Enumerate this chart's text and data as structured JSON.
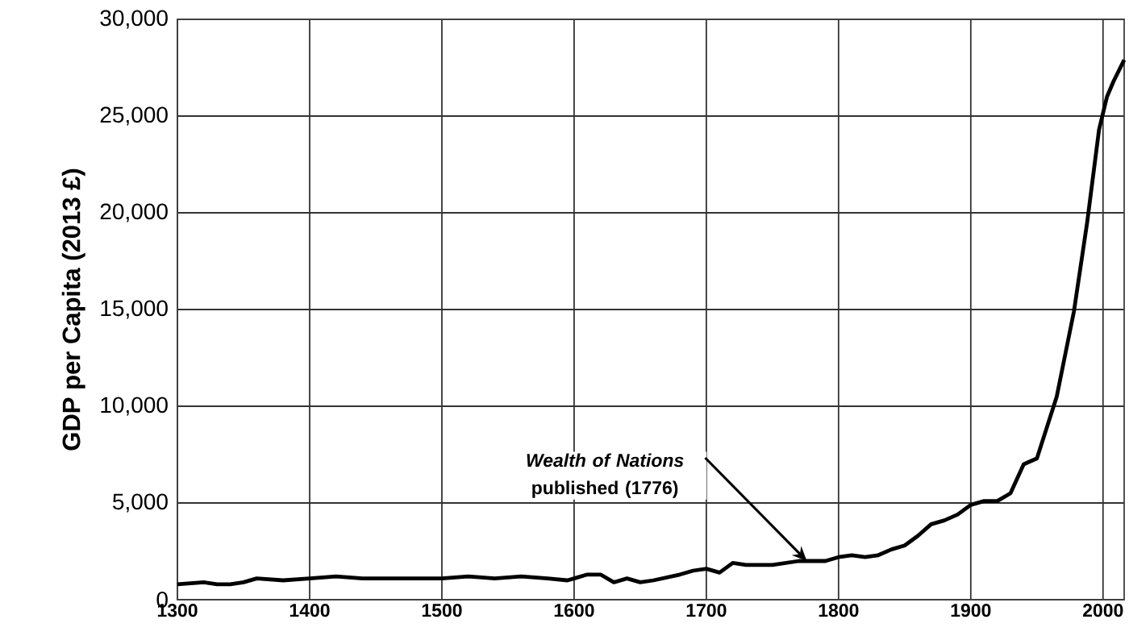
{
  "chart_data": {
    "type": "line",
    "ylabel": "GDP  per  Capita (2013 £)",
    "x": [
      1300,
      1320,
      1330,
      1340,
      1350,
      1360,
      1380,
      1400,
      1420,
      1440,
      1460,
      1480,
      1500,
      1520,
      1540,
      1560,
      1580,
      1595,
      1600,
      1610,
      1620,
      1630,
      1640,
      1650,
      1660,
      1680,
      1690,
      1700,
      1710,
      1720,
      1730,
      1750,
      1770,
      1790,
      1800,
      1810,
      1820,
      1830,
      1840,
      1850,
      1860,
      1870,
      1880,
      1890,
      1900,
      1910,
      1920,
      1930,
      1940,
      1950,
      1965,
      1978,
      1988,
      1997,
      2003,
      2008,
      2016
    ],
    "series": [
      {
        "color": "#000000",
        "values": [
          800,
          900,
          800,
          800,
          900,
          1100,
          1000,
          1100,
          1200,
          1100,
          1100,
          1100,
          1100,
          1200,
          1100,
          1200,
          1100,
          1000,
          1100,
          1300,
          1300,
          900,
          1100,
          900,
          1000,
          1300,
          1500,
          1600,
          1400,
          1900,
          1800,
          1800,
          2000,
          2000,
          2200,
          2300,
          2200,
          2300,
          2600,
          2800,
          3300,
          3900,
          4100,
          4400,
          4900,
          5100,
          5100,
          5500,
          7000,
          7300,
          10500,
          14900,
          19500,
          24300,
          26000,
          26800,
          27900
        ]
      }
    ],
    "xlim": [
      1300,
      2016
    ],
    "ylim": [
      0,
      30000
    ],
    "xticks": [
      1300,
      1400,
      1500,
      1600,
      1700,
      1800,
      1900,
      2000
    ],
    "yticks": [
      0,
      {
        "value": 5000,
        "label": "5,000"
      },
      {
        "value": 10000,
        "label": "10,000"
      },
      {
        "value": 15000,
        "label": "15,000"
      },
      {
        "value": 20000,
        "label": "20,000"
      },
      {
        "value": 25000,
        "label": "25,000"
      },
      {
        "value": 30000,
        "label": "30,000"
      }
    ],
    "grid": true,
    "marker": "none",
    "line_style": "solid",
    "annotations": [
      {
        "text": "*Wealth of Nations* published (1776)",
        "x": 1776,
        "y": 2000
      }
    ]
  }
}
